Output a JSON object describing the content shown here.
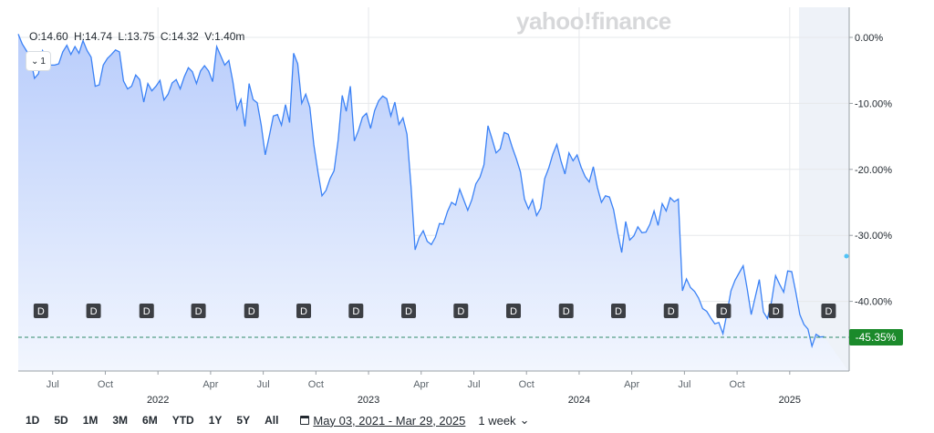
{
  "logo_text": "yahoo!finance",
  "ohlc": {
    "open": "O:14.60",
    "high": "H:14.74",
    "low": "L:13.75",
    "close": "C:14.32",
    "volume": "V:1.40m"
  },
  "collapse_label": "1",
  "toolbar": {
    "ranges": [
      "1D",
      "5D",
      "1M",
      "3M",
      "6M",
      "YTD",
      "1Y",
      "5Y",
      "All"
    ],
    "date_range": "May 03, 2021 - Mar 29, 2025",
    "interval": "1 week"
  },
  "colors": {
    "line": "#3b82f6",
    "fill_top": "#b9cdfb",
    "fill_bottom": "#f2f6fe",
    "badge": "#3c3f44",
    "current_badge": "#1b8a2b",
    "highlight": "#eef2f8"
  },
  "chart_data": {
    "type": "area",
    "x_unit": "weeks since May 03, 2021",
    "y_unit": "percent change",
    "ylim": [
      -50,
      5
    ],
    "yticks": [
      "0.00%",
      "-10.00%",
      "-20.00%",
      "-30.00%",
      "-40.00%"
    ],
    "ytick_values": [
      0,
      -10,
      -20,
      -30,
      -40
    ],
    "month_ticks": [
      {
        "label": "Jul",
        "t": 8.5
      },
      {
        "label": "Oct",
        "t": 21.5
      },
      {
        "label": "Apr",
        "t": 47.5
      },
      {
        "label": "Jul",
        "t": 60.5
      },
      {
        "label": "Oct",
        "t": 73.5
      },
      {
        "label": "Apr",
        "t": 99.5
      },
      {
        "label": "Jul",
        "t": 112.5
      },
      {
        "label": "Oct",
        "t": 125.5
      },
      {
        "label": "Apr",
        "t": 151.5
      },
      {
        "label": "Jul",
        "t": 164.5
      },
      {
        "label": "Oct",
        "t": 177.5
      }
    ],
    "year_ticks": [
      {
        "label": "2022",
        "t": 34.5
      },
      {
        "label": "2023",
        "t": 86.5
      },
      {
        "label": "2024",
        "t": 138.5
      },
      {
        "label": "2025",
        "t": 190.5
      }
    ],
    "dividend_markers": [
      {
        "label": "D",
        "t": 5.6
      },
      {
        "label": "D",
        "t": 18.6
      },
      {
        "label": "D",
        "t": 31.7
      },
      {
        "label": "D",
        "t": 44.5
      },
      {
        "label": "D",
        "t": 57.6
      },
      {
        "label": "D",
        "t": 70.5
      },
      {
        "label": "D",
        "t": 83.4
      },
      {
        "label": "D",
        "t": 96.4
      },
      {
        "label": "D",
        "t": 109.3
      },
      {
        "label": "D",
        "t": 122.3
      },
      {
        "label": "D",
        "t": 135.3
      },
      {
        "label": "D",
        "t": 148.2
      },
      {
        "label": "D",
        "t": 161.2
      },
      {
        "label": "D",
        "t": 174.2
      },
      {
        "label": "D",
        "t": 187.1
      },
      {
        "label": "D",
        "t": 200.1
      }
    ],
    "current_value": -45.35,
    "current_label": "-45.35%",
    "point_t": [
      0,
      1,
      2,
      3,
      4,
      5,
      6,
      7,
      8,
      9,
      10,
      11,
      12,
      13,
      14,
      15,
      16,
      17,
      18,
      19,
      20,
      21,
      22,
      23,
      24,
      25,
      26,
      27,
      28,
      29,
      30,
      31,
      32,
      33,
      34,
      35,
      36,
      37,
      38,
      39,
      40,
      41,
      42,
      43,
      44,
      45,
      46,
      47,
      48,
      49,
      50,
      51,
      52,
      53,
      54,
      55,
      56,
      57,
      58,
      59,
      60,
      61,
      62,
      63,
      64,
      65,
      66,
      67,
      68,
      69,
      70,
      71,
      72,
      73,
      74,
      75,
      76,
      77,
      78,
      79,
      80,
      81,
      82,
      83,
      84,
      85,
      86,
      87,
      88,
      89,
      90,
      91,
      92,
      93,
      94,
      95,
      96,
      97,
      98,
      99,
      100,
      101,
      102,
      103,
      104,
      105,
      106,
      107,
      108,
      109,
      110,
      111,
      112,
      113,
      114,
      115,
      116,
      117,
      118,
      119,
      120,
      121,
      122,
      123,
      124,
      125,
      126,
      127,
      128,
      129,
      130,
      131,
      132,
      133,
      134,
      135,
      136,
      137,
      138,
      139,
      140,
      141,
      142,
      143,
      144,
      145,
      146,
      147,
      148,
      149,
      150,
      151,
      152,
      153,
      154,
      155,
      156,
      157,
      158,
      159,
      160,
      161,
      162,
      163,
      164,
      165,
      166,
      167,
      168,
      169,
      170,
      171,
      172,
      173,
      174,
      175,
      176,
      177,
      178,
      179,
      180,
      181,
      182,
      183,
      184,
      185,
      186,
      187,
      188,
      189,
      190,
      191,
      192,
      193,
      194,
      195,
      196,
      197,
      198,
      199,
      200,
      201,
      202,
      203,
      204,
      205
    ],
    "values": [
      0.5,
      -1.0,
      -2.0,
      -3.0,
      -6.2,
      -5.5,
      -2.0,
      -3.0,
      -4.2,
      -4.2,
      -4.0,
      -2.2,
      -1.2,
      -2.6,
      -1.4,
      -2.4,
      -0.5,
      -2.0,
      -3.0,
      -7.4,
      -7.2,
      -4.2,
      -3.2,
      -2.6,
      -1.9,
      -2.2,
      -6.6,
      -7.8,
      -7.4,
      -5.7,
      -6.4,
      -9.8,
      -7.0,
      -8.1,
      -7.4,
      -6.5,
      -9.5,
      -8.6,
      -6.9,
      -6.4,
      -7.8,
      -6.0,
      -4.6,
      -5.2,
      -7.0,
      -5.1,
      -4.3,
      -5.1,
      -6.7,
      -1.4,
      -2.8,
      -4.2,
      -3.5,
      -6.7,
      -10.9,
      -9.4,
      -13.5,
      -7.0,
      -9.4,
      -9.9,
      -13.3,
      -17.8,
      -14.9,
      -11.9,
      -11.7,
      -13.3,
      -10.2,
      -12.9,
      -2.4,
      -4.0,
      -10.0,
      -8.6,
      -10.6,
      -16.3,
      -20.4,
      -24.0,
      -23.2,
      -21.4,
      -20.2,
      -15.5,
      -8.8,
      -11.2,
      -7.4,
      -15.7,
      -14.1,
      -12.1,
      -11.5,
      -13.8,
      -11.1,
      -9.6,
      -8.9,
      -9.3,
      -11.9,
      -9.8,
      -13.2,
      -12.2,
      -14.7,
      -22.7,
      -32.2,
      -30.3,
      -29.3,
      -30.9,
      -31.4,
      -30.3,
      -28.2,
      -28.3,
      -26.4,
      -25.0,
      -25.4,
      -23.0,
      -24.6,
      -26.2,
      -24.6,
      -22.2,
      -21.2,
      -19.3,
      -13.4,
      -15.4,
      -17.5,
      -16.9,
      -14.4,
      -14.7,
      -16.7,
      -18.4,
      -20.4,
      -24.5,
      -26.0,
      -24.6,
      -27.0,
      -25.9,
      -21.4,
      -19.8,
      -17.7,
      -16.2,
      -18.7,
      -20.7,
      -17.5,
      -18.7,
      -17.8,
      -19.7,
      -21.1,
      -21.9,
      -19.6,
      -22.7,
      -25.0,
      -24.0,
      -24.2,
      -26.1,
      -29.5,
      -32.6,
      -27.9,
      -30.7,
      -30.1,
      -28.7,
      -29.6,
      -29.5,
      -28.3,
      -26.3,
      -28.5,
      -25.2,
      -26.3,
      -24.3,
      -24.9,
      -24.5,
      -38.4,
      -36.6,
      -37.9,
      -38.5,
      -39.5,
      -41.1,
      -41.5,
      -42.5,
      -43.4,
      -43.2,
      -44.9,
      -41.8,
      -38.4,
      -36.8,
      -35.7,
      -34.6,
      -38.1,
      -42.0,
      -39.3,
      -36.7,
      -41.6,
      -42.6,
      -40.1,
      -36.1,
      -37.4,
      -38.6,
      -35.4,
      -35.5,
      -38.6,
      -42.0,
      -43.5,
      -44.2,
      -46.8,
      -45.0,
      -45.4,
      -45.35
    ]
  }
}
